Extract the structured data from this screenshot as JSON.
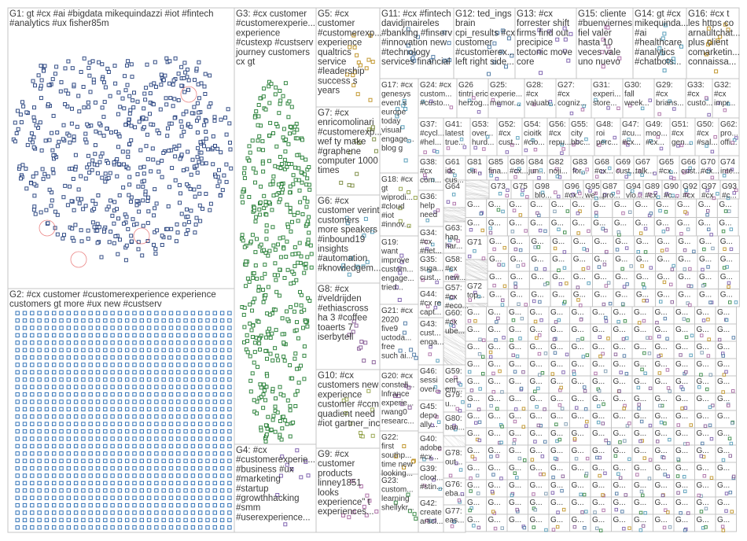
{
  "groups": [
    {
      "id": "G1",
      "lines": [
        "G1: gt #cx #ai #bigdata mikequindazzi #iot #fintech",
        "#analytics #ux fisher85m"
      ]
    },
    {
      "id": "G2",
      "lines": [
        "G2: #cx customer #customerexperience experience",
        "customers gt more #ux new #custserv"
      ]
    },
    {
      "id": "G3",
      "lines": [
        "G3: #cx customer",
        "#customerexperie...",
        "experience",
        "#custexp #custserv",
        "journey customers",
        "cx gt"
      ]
    },
    {
      "id": "G4",
      "lines": [
        "G4: #cx",
        "#customerexperie...",
        "#business #ux",
        "#marketing",
        "#startup",
        "#growthhacking",
        "#smm",
        "#userexperience..."
      ]
    },
    {
      "id": "G5",
      "lines": [
        "G5: #cx",
        "customer",
        "#customerexp...",
        "experience",
        "qualtrics",
        "service",
        "#leadership",
        "success s",
        "years"
      ]
    },
    {
      "id": "G6",
      "lines": [
        "G6: #cx",
        "customer verint",
        "customers",
        "more speakers",
        "#inbound19",
        "insights",
        "#automation",
        "#knowledgem..."
      ]
    },
    {
      "id": "G7",
      "lines": [
        "G7: #cx",
        "enricomolinari",
        "#customerexp...",
        "wef ty make",
        "#graphene",
        "computer 1000",
        "times"
      ]
    },
    {
      "id": "G8",
      "lines": [
        "G8: #cx",
        "#veldrijden",
        "#ethiascross",
        "ha 3 #coffee",
        "toaerts 7",
        "iserbytell"
      ]
    },
    {
      "id": "G9",
      "lines": [
        "G9: #cx",
        "customer",
        "products",
        "linney1851",
        "looks",
        "experience\" t",
        "experiences..."
      ]
    },
    {
      "id": "G10",
      "lines": [
        "G10: #cx",
        "customers new",
        "experience",
        "customer #ccm",
        "quadient need",
        "#iot gartner_inc"
      ]
    },
    {
      "id": "G11",
      "lines": [
        "G11: #cx #fintech",
        "davidjmaireles",
        "#banking #finserv",
        "#innovation new",
        "#technology",
        "services financial"
      ]
    },
    {
      "id": "G12",
      "lines": [
        "G12: ted_ings",
        "brain",
        "cpi_results #cx",
        "customer",
        "#customerex...",
        "left right side..."
      ]
    },
    {
      "id": "G13",
      "lines": [
        "G13: #cx",
        "forrester shift",
        "firms find out",
        "precipice",
        "tectonic move",
        "core"
      ]
    },
    {
      "id": "G14",
      "lines": [
        "G14: gt #cx",
        "mikequinda...",
        "#ai",
        "#healthcare",
        "#analytics",
        "#chatbots..."
      ]
    },
    {
      "id": "G15",
      "lines": [
        "G15: cliente",
        "#buenviernes",
        "fiel valer",
        "hasta 10",
        "veces vale",
        "uno nuevo"
      ]
    },
    {
      "id": "G16",
      "lines": [
        "G16: #cx t",
        "les https co",
        "arnaultchat...",
        "plus client",
        "comarketin...",
        "connaissa..."
      ]
    },
    {
      "id": "G17",
      "lines": [
        "G17: #cx",
        "genesys",
        "event s",
        "europe",
        "today",
        "visual",
        "engage...",
        "blog g"
      ]
    },
    {
      "id": "G18",
      "lines": [
        "G18: #cx",
        "gt",
        "wiprodi...",
        "#cloud",
        "#iot",
        "#innov..."
      ]
    },
    {
      "id": "G19",
      "lines": [
        "G19:",
        "want",
        "improve",
        "custom...",
        "engage...",
        "tried..."
      ]
    },
    {
      "id": "G20",
      "lines": [
        "G20: #cx",
        "constell...",
        "lnfrance",
        "experie...",
        "rwang0",
        "researc..."
      ]
    },
    {
      "id": "G21",
      "lines": [
        "G21: #cx",
        "2020",
        "five9",
        "uctoda...",
        "free",
        "such ai..."
      ]
    },
    {
      "id": "G22",
      "lines": [
        "G22:",
        "first",
        "southp...",
        "time new",
        "looking..."
      ]
    },
    {
      "id": "G23",
      "lines": [
        "G23:",
        "custom...",
        "learning",
        "shellykr..."
      ]
    },
    {
      "id": "G24",
      "lines": [
        "G24: #cx",
        "custom...",
        "#custo..."
      ]
    },
    {
      "id": "G25",
      "lines": [
        "G25:",
        "experie...",
        "memor..."
      ]
    },
    {
      "id": "G26",
      "lines": [
        "G26",
        "tintri eric",
        "herzog..."
      ]
    },
    {
      "id": "G27",
      "lines": [
        "G27:",
        "#cx",
        "cogniz..."
      ]
    },
    {
      "id": "G28",
      "lines": [
        "G28:",
        "#cx",
        "valuab..."
      ]
    },
    {
      "id": "G29",
      "lines": [
        "G29:",
        "#cx",
        "brians..."
      ]
    },
    {
      "id": "G30",
      "lines": [
        "G30:",
        "fall",
        "week..."
      ]
    },
    {
      "id": "G31",
      "lines": [
        "G31:",
        "experi...",
        "store..."
      ]
    },
    {
      "id": "G32",
      "lines": [
        "G32:",
        "#cx",
        "impr..."
      ]
    },
    {
      "id": "G33",
      "lines": [
        "G33:",
        "#cx",
        "custo..."
      ]
    },
    {
      "id": "G34",
      "lines": [
        "G34:",
        "#cx",
        "#net..."
      ]
    },
    {
      "id": "G35",
      "lines": [
        "G35:",
        "suga...",
        "cust..."
      ]
    },
    {
      "id": "G36",
      "lines": [
        "G36:",
        "help",
        "need"
      ]
    },
    {
      "id": "G37",
      "lines": [
        "G37:",
        "#cycl...",
        "#hel..."
      ]
    },
    {
      "id": "G38",
      "lines": [
        "G38:",
        "#cx",
        "com..."
      ]
    },
    {
      "id": "G39",
      "lines": [
        "G39:",
        "cloot...",
        "#stin..."
      ]
    },
    {
      "id": "G40",
      "lines": [
        "G40:",
        "adobe",
        "#cx..."
      ]
    },
    {
      "id": "G41",
      "lines": [
        "G41:",
        "latest",
        "true..."
      ]
    },
    {
      "id": "G42",
      "lines": [
        "G42:",
        "create",
        "articl..."
      ]
    },
    {
      "id": "G43",
      "lines": [
        "G43:",
        "cust...",
        "enga..."
      ]
    },
    {
      "id": "G44",
      "lines": [
        "G44:",
        "#cx re",
        "capt..."
      ]
    },
    {
      "id": "G45",
      "lines": [
        "G45:",
        "depo",
        "ally..."
      ]
    },
    {
      "id": "G46",
      "lines": [
        "G46:",
        "sessi",
        "over..."
      ]
    },
    {
      "id": "G47",
      "lines": [
        "G47:",
        "#cu...",
        "#cx..."
      ]
    },
    {
      "id": "G48",
      "lines": [
        "G48:",
        "roi",
        "perc..."
      ]
    },
    {
      "id": "G49",
      "lines": [
        "G49:",
        "moo...",
        "#cx..."
      ]
    },
    {
      "id": "G50",
      "lines": [
        "G50:",
        "#cx",
        "#sal..."
      ]
    },
    {
      "id": "G51",
      "lines": [
        "G51:",
        "#cx",
        "gen..."
      ]
    },
    {
      "id": "G52",
      "lines": [
        "G52:",
        "#cx",
        "cust..."
      ]
    },
    {
      "id": "G53",
      "lines": [
        "G53:",
        "over...",
        "hurd..."
      ]
    },
    {
      "id": "G54",
      "lines": [
        "G54:",
        "cioitk",
        "#cio..."
      ]
    },
    {
      "id": "G55",
      "lines": [
        "G55:",
        "city",
        "bbc..."
      ]
    },
    {
      "id": "G56",
      "lines": [
        "G56:",
        "#cx",
        "repu..."
      ]
    },
    {
      "id": "G57",
      "lines": [
        "G57:",
        "#cx",
        "#eco..."
      ]
    },
    {
      "id": "G58",
      "lines": [
        "G58:",
        "#cx",
        "new..."
      ]
    },
    {
      "id": "G59",
      "lines": [
        "G59:",
        "cert",
        "em..."
      ]
    },
    {
      "id": "G60",
      "lines": [
        "G60:",
        "#cx",
        "ube..."
      ]
    },
    {
      "id": "G61",
      "lines": [
        "G61",
        "idc",
        "cus..."
      ]
    },
    {
      "id": "G62",
      "lines": [
        "G62:",
        "pro...",
        "offi..."
      ]
    },
    {
      "id": "G63",
      "lines": [
        "G63:",
        "hap",
        "har..."
      ]
    },
    {
      "id": "G64",
      "lines": [
        "G64"
      ]
    },
    {
      "id": "G65",
      "lines": [
        "G65",
        "#cx..."
      ]
    },
    {
      "id": "G66",
      "lines": [
        "G66",
        "cust..."
      ]
    },
    {
      "id": "G67",
      "lines": [
        "G67",
        "talk..."
      ]
    },
    {
      "id": "G68",
      "lines": [
        "G68",
        "#cx..."
      ]
    },
    {
      "id": "G69",
      "lines": [
        "G69",
        "cust..."
      ]
    },
    {
      "id": "G70",
      "lines": [
        "G70",
        "#cx..."
      ]
    },
    {
      "id": "G71",
      "lines": [
        "G71"
      ]
    },
    {
      "id": "G72",
      "lines": [
        "G72",
        "top..."
      ]
    },
    {
      "id": "G73",
      "lines": [
        "G73"
      ]
    },
    {
      "id": "G74",
      "lines": [
        "G74",
        "inte..."
      ]
    },
    {
      "id": "G75",
      "lines": [
        "G75"
      ]
    },
    {
      "id": "G76",
      "lines": [
        "G76:",
        "eba..."
      ]
    },
    {
      "id": "G77",
      "lines": [
        "G77:",
        "eas..."
      ]
    },
    {
      "id": "G78",
      "lines": [
        "G78:",
        "out..."
      ]
    },
    {
      "id": "G79",
      "lines": [
        "G79:",
        "u..."
      ]
    },
    {
      "id": "G80",
      "lines": [
        "G80:",
        "ban..."
      ]
    },
    {
      "id": "G81",
      "lines": [
        "G81",
        "cu..."
      ]
    },
    {
      "id": "G82",
      "lines": [
        "G82",
        "noji..."
      ]
    },
    {
      "id": "G83",
      "lines": [
        "G83",
        "for..."
      ]
    },
    {
      "id": "G84",
      "lines": [
        "G84",
        "jun..."
      ]
    },
    {
      "id": "G85",
      "lines": [
        "G85",
        "fina..."
      ]
    },
    {
      "id": "G86",
      "lines": [
        "G86",
        "#cx..."
      ]
    },
    {
      "id": "G87",
      "lines": [
        "G87",
        "pro..."
      ]
    },
    {
      "id": "G88",
      "lines": [
        "G88",
        "blo..."
      ]
    },
    {
      "id": "G89",
      "lines": [
        "G89",
        "#cx"
      ]
    },
    {
      "id": "G90",
      "lines": [
        "G90",
        "#c..."
      ]
    },
    {
      "id": "G91",
      "lines": [
        "G91",
        "use..."
      ]
    },
    {
      "id": "G92",
      "lines": [
        "G92",
        "#cx"
      ]
    },
    {
      "id": "G93",
      "lines": [
        "G93",
        "#c..."
      ]
    },
    {
      "id": "G94",
      "lines": [
        "G94",
        "vlo..."
      ]
    },
    {
      "id": "G95",
      "lines": [
        "G95",
        "we'..."
      ]
    },
    {
      "id": "G96",
      "lines": [
        "G96",
        "#cx..."
      ]
    },
    {
      "id": "G97",
      "lines": [
        "G97",
        "#cx"
      ]
    },
    {
      "id": "G98",
      "lines": [
        "G98",
        "blo..."
      ]
    }
  ],
  "small_label": "G...",
  "colors": {
    "G1": "#1f3b7a",
    "G2": "#2a6db5",
    "G3": "#1e7a2e",
    "G4": "#6b4ba3",
    "G5": "#b8860b",
    "G6": "#3d8fb0",
    "G7": "#6b7d2b",
    "G8": "#7a4a8a",
    "G9": "#a05a9a",
    "G10": "#8a9a3a",
    "G11": "#3a6a9a",
    "small": "#6f8fa8",
    "edge": "#9b9b9b",
    "highlight": "#d33"
  }
}
